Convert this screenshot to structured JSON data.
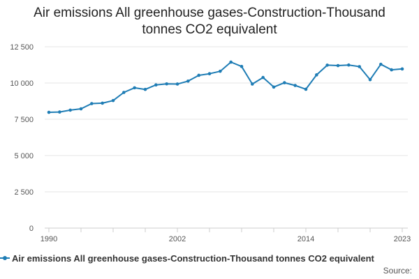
{
  "chart_data": {
    "type": "line",
    "title": "Air emissions All greenhouse gases-Construction-Thousand tonnes CO2 equivalent",
    "title_lines": [
      "Air emissions All greenhouse gases-Construction-Thousand",
      "tonnes CO2 equivalent"
    ],
    "x": [
      1990,
      1991,
      1992,
      1993,
      1994,
      1995,
      1996,
      1997,
      1998,
      1999,
      2000,
      2001,
      2002,
      2003,
      2004,
      2005,
      2006,
      2007,
      2008,
      2009,
      2010,
      2011,
      2012,
      2013,
      2014,
      2015,
      2016,
      2017,
      2018,
      2019,
      2020,
      2021,
      2022,
      2023
    ],
    "series": [
      {
        "name": "Air emissions All greenhouse gases-Construction-Thousand tonnes CO2 equivalent",
        "values": [
          7980,
          8000,
          8130,
          8220,
          8580,
          8610,
          8790,
          9350,
          9670,
          9560,
          9870,
          9940,
          9930,
          10130,
          10530,
          10640,
          10810,
          11440,
          11140,
          9930,
          10380,
          9720,
          10020,
          9830,
          9570,
          10560,
          11230,
          11200,
          11240,
          11130,
          10230,
          11290,
          10910,
          10970
        ]
      }
    ],
    "x_ticks": [
      1990,
      2002,
      2014,
      2023
    ],
    "x_tick_labels": [
      "1990",
      "2002",
      "2014",
      "2023"
    ],
    "y_ticks": [
      0,
      2500,
      5000,
      7500,
      10000,
      12500
    ],
    "y_tick_labels": [
      "0",
      "2 500",
      "5 000",
      "7 500",
      "10 000",
      "12 500"
    ],
    "xlim": [
      1990,
      2023
    ],
    "ylim": [
      0,
      12500
    ],
    "xlabel": "",
    "ylabel": "",
    "grid": "horizontal",
    "legend_position": "bottom",
    "colors": {
      "series": "#1f7db5",
      "grid": "#e6e6e6",
      "axis": "#cccccc"
    }
  },
  "legend": {
    "label": "Air emissions All greenhouse gases-Construction-Thousand tonnes CO2 equivalent"
  },
  "source": {
    "label": "Source:"
  }
}
